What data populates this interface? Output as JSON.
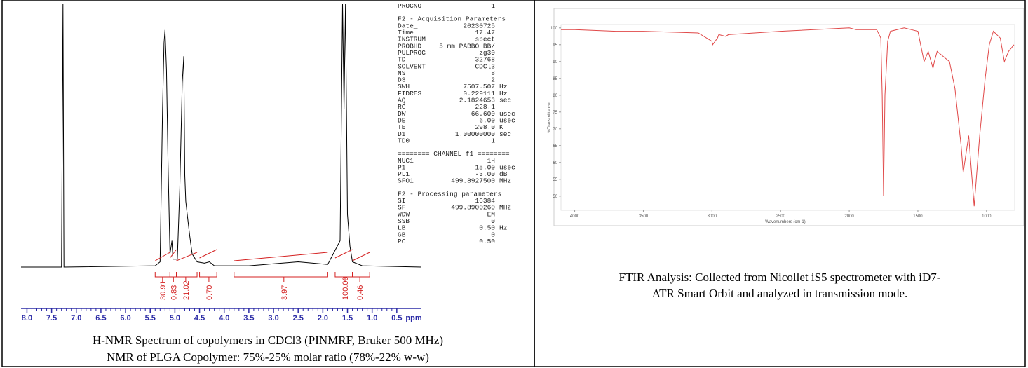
{
  "chart_data": [
    {
      "type": "line",
      "xlabel": "ppm",
      "color": "#000000",
      "integral_color": "#d42020",
      "axis_color": "#2b2ba6",
      "x": [
        8.12,
        7.3,
        7.27,
        7.25,
        5.4,
        5.3,
        5.25,
        5.22,
        5.2,
        5.17,
        5.14,
        5.1,
        5.06,
        5.04,
        4.95,
        4.9,
        4.85,
        4.82,
        4.8,
        4.78,
        4.75,
        4.7,
        4.65,
        4.55,
        4.4,
        4.3,
        4.2,
        3.5,
        2.5,
        1.9,
        1.65,
        1.6,
        1.57,
        1.54,
        1.5,
        1.45,
        1.4,
        1.2,
        0
      ],
      "values": [
        0,
        0,
        100,
        0,
        0.5,
        2,
        60,
        85,
        90,
        75,
        40,
        5,
        10,
        3,
        3,
        30,
        70,
        80,
        35,
        25,
        20,
        12,
        5,
        2,
        1.5,
        2,
        0.5,
        0.5,
        2,
        1,
        10,
        100,
        60,
        100,
        20,
        8,
        2,
        0.5,
        0
      ],
      "xlim": [
        8.12,
        0
      ],
      "ylim": [
        0,
        100
      ],
      "xticks": [
        {
          "value": 8,
          "label": "8.0"
        },
        7.5,
        {
          "value": 7,
          "label": "7.0"
        },
        6.5,
        {
          "value": 6,
          "label": "6.0"
        },
        5.5,
        {
          "value": 5,
          "label": "5.0"
        },
        4.5,
        {
          "value": 4,
          "label": "4.0"
        },
        3.5,
        {
          "value": 3,
          "label": "3.0"
        },
        2.5,
        {
          "value": 2,
          "label": "2.0"
        },
        1.5,
        {
          "value": 1,
          "label": "1.0"
        },
        0.5
      ],
      "integrals": [
        "30.91",
        "0.83",
        "21.02",
        "0.70",
        "3.97",
        "100.00",
        "0.46"
      ]
    },
    {
      "type": "line",
      "xlabel": "Wavenumbers (cm-1)",
      "ylabel": "%Transmittance",
      "color": "#e04848",
      "x": [
        4100,
        4000,
        3700,
        3500,
        3100,
        3000,
        2995,
        2960,
        2950,
        2900,
        2880,
        2500,
        2000,
        1950,
        1800,
        1770,
        1760,
        1750,
        1740,
        1720,
        1700,
        1600,
        1550,
        1500,
        1455,
        1425,
        1390,
        1380,
        1360,
        1300,
        1270,
        1230,
        1185,
        1170,
        1130,
        1090,
        1050,
        1010,
        980,
        950,
        900,
        870,
        840,
        800
      ],
      "values": [
        99.5,
        99.5,
        99,
        99,
        98.5,
        96,
        95,
        97,
        98,
        97.5,
        98,
        99,
        100,
        99.5,
        99.5,
        97,
        80,
        50,
        80,
        96,
        99,
        100,
        99.5,
        99,
        90,
        93,
        88,
        90,
        93,
        91,
        90,
        82,
        65,
        57,
        68,
        47,
        68,
        85,
        95,
        99,
        97,
        90,
        93,
        95
      ],
      "xlim": [
        4100,
        800
      ],
      "ylim": [
        46,
        101
      ],
      "xticks": [
        4000,
        3500,
        3000,
        2500,
        2000,
        1500,
        1000
      ],
      "yticks": [
        100,
        95,
        90,
        85,
        80,
        75,
        70,
        65,
        60,
        55,
        50
      ]
    }
  ],
  "parameters": [
    {
      "rows": [
        [
          "PROCNO",
          "1"
        ]
      ]
    },
    {
      "heading": "F2 - Acquisition Parameters",
      "rows": [
        [
          "Date_",
          "20230725"
        ],
        [
          "Time",
          "17.47"
        ],
        [
          "INSTRUM",
          "spect"
        ],
        [
          "PROBHD",
          "5 mm PABBO BB/"
        ],
        [
          "PULPROG",
          "zg30"
        ],
        [
          "TD",
          "32768"
        ],
        [
          "SOLVENT",
          "CDCl3"
        ],
        [
          "NS",
          "8"
        ],
        [
          "DS",
          "2"
        ],
        [
          "SWH",
          "7507.507",
          "Hz"
        ],
        [
          "FIDRES",
          "0.229111",
          "Hz"
        ],
        [
          "AQ",
          "2.1824653",
          "sec"
        ],
        [
          "RG",
          "228.1"
        ],
        [
          "DW",
          "66.600",
          "usec"
        ],
        [
          "DE",
          "6.00",
          "usec"
        ],
        [
          "TE",
          "298.0",
          "K"
        ],
        [
          "D1",
          "1.00000000",
          "sec"
        ],
        [
          "TD0",
          "1"
        ]
      ]
    },
    {
      "heading": "======== CHANNEL f1 ========",
      "rows": [
        [
          "NUC1",
          "1H"
        ],
        [
          "P1",
          "15.00",
          "usec"
        ],
        [
          "PL1",
          "-3.00",
          "dB"
        ],
        [
          "SFO1",
          "499.8927500",
          "MHz"
        ]
      ]
    },
    {
      "heading": "F2 - Processing parameters",
      "rows": [
        [
          "SI",
          "16384"
        ],
        [
          "SF",
          "499.8900260",
          "MHz"
        ],
        [
          "WDW",
          "EM"
        ],
        [
          "SSB",
          "0"
        ],
        [
          "LB",
          "0.50",
          "Hz"
        ],
        [
          "GB",
          "0"
        ],
        [
          "PC",
          "0.50"
        ]
      ]
    }
  ],
  "captions": {
    "nmr": [
      "H-NMR Spectrum of copolymers in CDCl3 (PINMRF, Bruker 500 MHz)",
      "NMR of PLGA Copolymer: 75%-25%  molar ratio (78%-22% w-w)"
    ],
    "ftir": [
      "FTIR Analysis: Collected from Nicollet iS5 spectrometer with iD7-",
      "ATR Smart Orbit and analyzed in transmission mode."
    ]
  }
}
